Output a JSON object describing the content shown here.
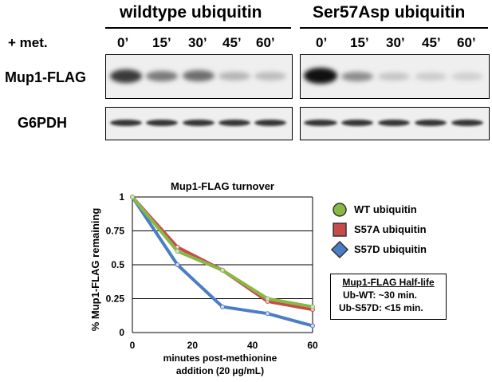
{
  "blot": {
    "panels": [
      {
        "title": "wildtype ubiquitin",
        "timepoints": [
          "0’",
          "15’",
          "30’",
          "45’",
          "60’"
        ]
      },
      {
        "title": "Ser57Asp ubiquitin",
        "timepoints": [
          "0’",
          "15’",
          "30’",
          "45’",
          "60’"
        ]
      }
    ],
    "treatment_label": "+ met.",
    "rows": [
      "Mup1-FLAG",
      "G6PDH"
    ]
  },
  "chart_data": {
    "type": "line",
    "title": "Mup1-FLAG turnover",
    "xlabel": "minutes post-methionine addition (20 µg/mL)",
    "xlabel_lines": [
      "minutes post-methionine",
      "addition (20 µg/mL)"
    ],
    "ylabel": "% Mup1-FLAG remaining",
    "x": [
      0,
      15,
      30,
      45,
      60
    ],
    "xlim": [
      0,
      60
    ],
    "ylim": [
      0,
      1
    ],
    "xticks": [
      "0",
      "20",
      "40",
      "60"
    ],
    "yticks": [
      "0",
      "0.25",
      "0.5",
      "0.75",
      "1"
    ],
    "grid": "horizontal",
    "legend_position": "right",
    "series": [
      {
        "name": "WT ubiquitin",
        "marker": "circle",
        "color": "#8ab846",
        "values": [
          1.0,
          0.6,
          0.46,
          0.25,
          0.19
        ]
      },
      {
        "name": "S57A ubiquitin",
        "marker": "square",
        "color": "#c84b4b",
        "values": [
          1.0,
          0.63,
          0.46,
          0.23,
          0.17
        ]
      },
      {
        "name": "S57D ubiquitin",
        "marker": "diamond",
        "color": "#4a7ec4",
        "values": [
          1.0,
          0.5,
          0.19,
          0.14,
          0.05
        ]
      }
    ]
  },
  "half_life": {
    "title": "Mup1-FLAG Half-life",
    "lines": [
      "Ub-WT:  ~30 min.",
      "Ub-S57D:  <15 min."
    ]
  }
}
